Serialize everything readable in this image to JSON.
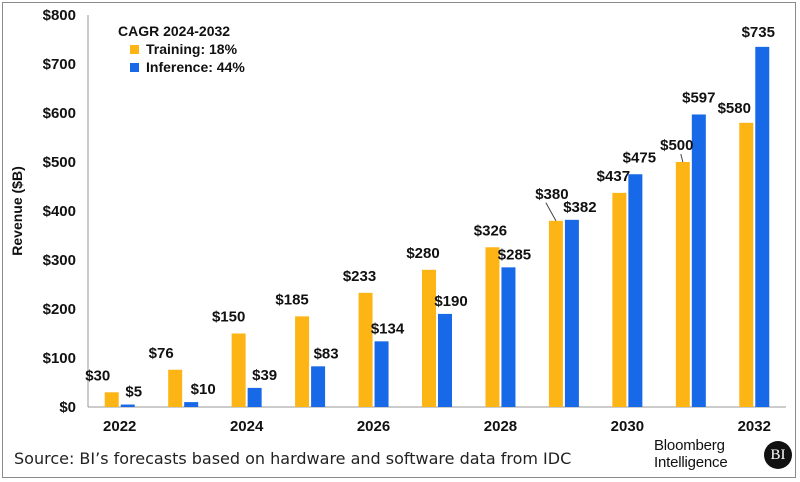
{
  "chart_data": {
    "type": "bar",
    "categories": [
      "2022",
      "2023",
      "2024",
      "2025",
      "2026",
      "2027",
      "2028",
      "2029",
      "2030",
      "2031",
      "2032"
    ],
    "x_tick_labels": [
      "2022",
      "",
      "2024",
      "",
      "2026",
      "",
      "2028",
      "",
      "2030",
      "",
      "2032"
    ],
    "series": [
      {
        "name": "Training",
        "color": "#FDB515",
        "values": [
          30,
          76,
          150,
          185,
          233,
          280,
          326,
          380,
          437,
          500,
          580
        ]
      },
      {
        "name": "Inference",
        "color": "#1769E8",
        "values": [
          5,
          10,
          39,
          83,
          134,
          190,
          285,
          382,
          475,
          597,
          735
        ]
      }
    ],
    "ylabel": "Revenue ($B)",
    "xlabel": "",
    "ylim": [
      0,
      800
    ],
    "yticks": [
      0,
      100,
      200,
      300,
      400,
      500,
      600,
      700,
      800
    ],
    "ytick_labels": [
      "$0",
      "$100",
      "$200",
      "$300",
      "$400",
      "$500",
      "$600",
      "$700",
      "$800"
    ],
    "legend": {
      "title": "CAGR 2024-2032",
      "entries": [
        "Training: 18%",
        "Inference: 44%"
      ],
      "placement": "top-left"
    },
    "grid": false
  },
  "footer": {
    "source": "Source: BI’s forecasts based on hardware and software data from IDC",
    "brand_line1": "Bloomberg",
    "brand_line2": "Intelligence",
    "brand_badge": "BI"
  }
}
